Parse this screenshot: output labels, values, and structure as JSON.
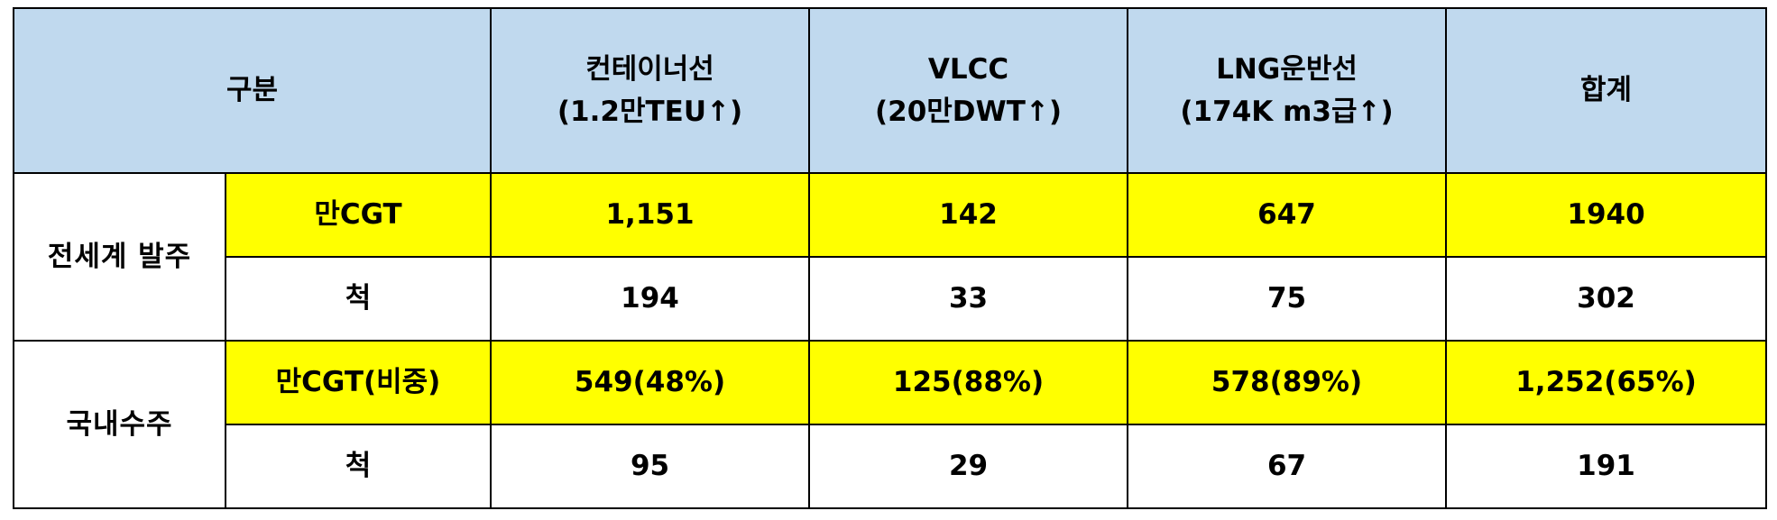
{
  "header": {
    "category": "구분",
    "columns": [
      {
        "line1": "컨테이너선",
        "line2": "(1.2만TEU↑)"
      },
      {
        "line1": "VLCC",
        "line2": "(20만DWT↑)"
      },
      {
        "line1": "LNG운반선",
        "line2": "(174K m3급↑)"
      },
      {
        "line1": "합계",
        "line2": ""
      }
    ]
  },
  "groups": [
    {
      "label": "전세계 발주",
      "rows": [
        {
          "unit": "만CGT",
          "highlight": true,
          "values": [
            "1,151",
            "142",
            "647",
            "1940"
          ]
        },
        {
          "unit": "척",
          "highlight": false,
          "values": [
            "194",
            "33",
            "75",
            "302"
          ]
        }
      ]
    },
    {
      "label": "국내수주",
      "rows": [
        {
          "unit": "만CGT(비중)",
          "highlight": true,
          "values": [
            "549(48%)",
            "125(88%)",
            "578(89%)",
            "1,252(65%)"
          ]
        },
        {
          "unit": "척",
          "highlight": false,
          "values": [
            "95",
            "29",
            "67",
            "191"
          ]
        }
      ]
    }
  ],
  "colors": {
    "header_bg": "#c0d9ee",
    "highlight_bg": "#ffff00",
    "border": "#000000"
  }
}
